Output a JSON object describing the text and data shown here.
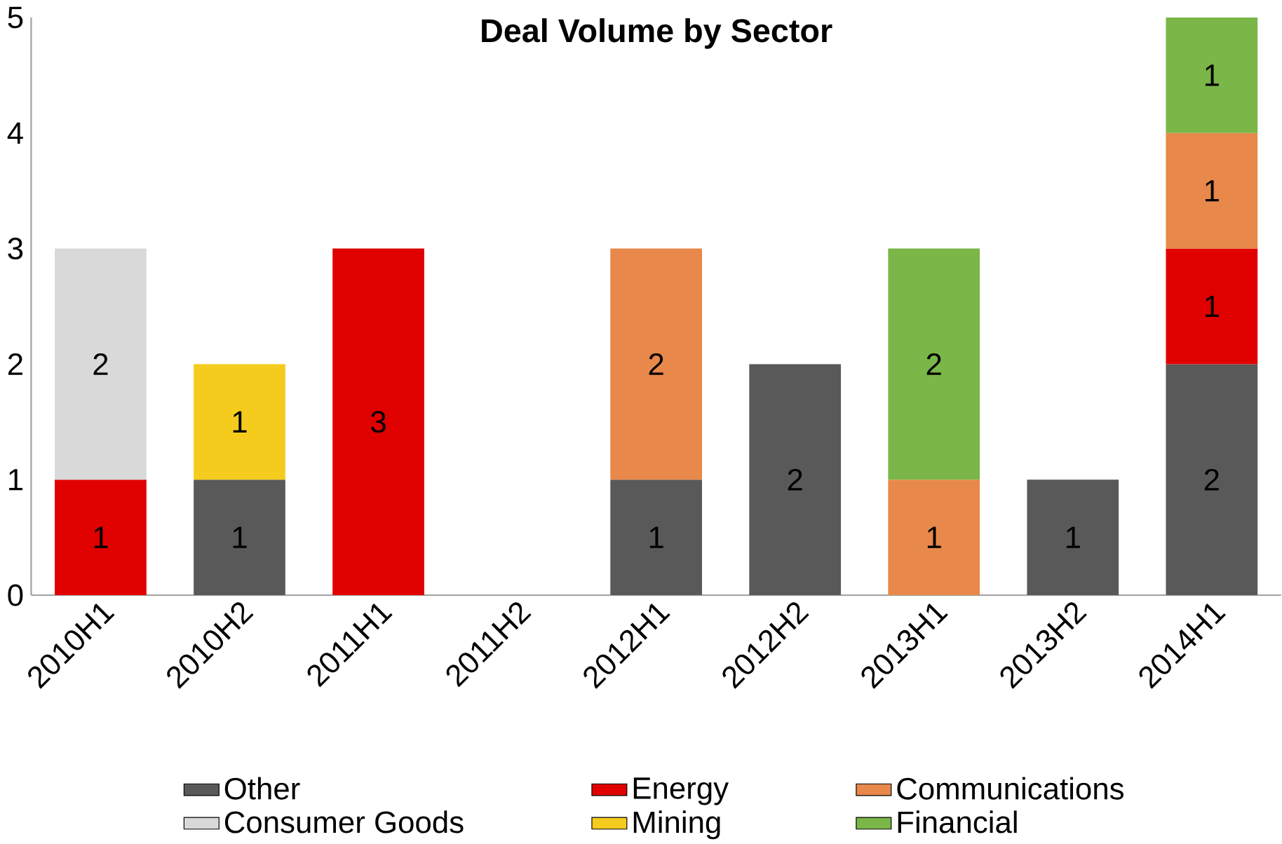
{
  "chart_data": {
    "type": "bar",
    "stacked": true,
    "title": "Deal Volume by Sector",
    "categories": [
      "2010H1",
      "2010H2",
      "2011H1",
      "2011H2",
      "2012H1",
      "2012H2",
      "2013H1",
      "2013H2",
      "2014H1"
    ],
    "series": [
      {
        "name": "Other",
        "color": "#595959",
        "values": [
          null,
          1,
          null,
          null,
          1,
          2,
          null,
          1,
          2
        ]
      },
      {
        "name": "Energy",
        "color": "#e00000",
        "values": [
          1,
          null,
          3,
          null,
          null,
          null,
          null,
          null,
          1
        ]
      },
      {
        "name": "Communications",
        "color": "#e8884a",
        "values": [
          null,
          null,
          null,
          null,
          2,
          null,
          1,
          null,
          1
        ]
      },
      {
        "name": "Consumer Goods",
        "color": "#d9d9d9",
        "values": [
          2,
          null,
          null,
          null,
          null,
          null,
          null,
          null,
          null
        ]
      },
      {
        "name": "Mining",
        "color": "#f5cc1d",
        "values": [
          null,
          1,
          null,
          null,
          null,
          null,
          null,
          null,
          null
        ]
      },
      {
        "name": "Financial",
        "color": "#7ab648",
        "values": [
          null,
          null,
          null,
          null,
          null,
          null,
          2,
          null,
          1
        ]
      }
    ],
    "ylim": [
      0,
      5
    ],
    "yticks": [
      0,
      1,
      2,
      3,
      4,
      5
    ],
    "data_labels": true,
    "legend": "bottom",
    "grid": false
  }
}
